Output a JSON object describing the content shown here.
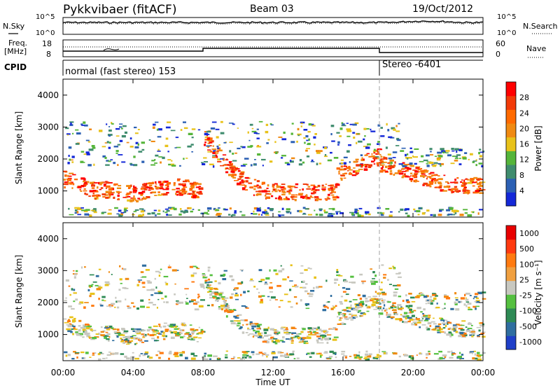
{
  "header": {
    "station": "Pykkvibaer (fitACF)",
    "beam": "Beam 03",
    "date": "19/Oct/2012"
  },
  "noise_panel": {
    "left_label": "N.Sky",
    "right_label": "N.Search",
    "ticks_left": [
      "10^5",
      "10^0"
    ],
    "ticks_right": [
      "10^5",
      "10^0"
    ]
  },
  "freq_panel": {
    "left_label_1": "Freq.",
    "left_label_2": "[MHz]",
    "ticks_left": [
      "18",
      "8"
    ],
    "right_label": "Nave",
    "ticks_right": [
      "60",
      "0"
    ]
  },
  "cpid": {
    "label": "CPID",
    "segments": [
      {
        "text": "normal (fast stereo) 153",
        "start": "00:00"
      },
      {
        "text": "Stereo -6401",
        "start": "18:00"
      }
    ]
  },
  "chart_data": [
    {
      "type": "heatmap",
      "title": "",
      "xlabel": "Time UT",
      "ylabel": "Slant Range [km]",
      "x_ticks": [
        "00:00",
        "04:00",
        "08:00",
        "12:00",
        "16:00",
        "20:00",
        "00:00"
      ],
      "y_ticks": [
        "1000",
        "2000",
        "3000",
        "4000"
      ],
      "ylim": [
        180,
        4500
      ],
      "colorbar": {
        "label": "Power [dB]",
        "ticks": [
          "4",
          "8",
          "12",
          "16",
          "20",
          "24",
          "28"
        ],
        "colors": [
          "#1428d8",
          "#2c60b4",
          "#3f8c6e",
          "#55b53a",
          "#e8c21a",
          "#f08a12",
          "#ff6a00",
          "#f23a08",
          "#ff0000"
        ]
      }
    },
    {
      "type": "heatmap",
      "title": "",
      "xlabel": "Time UT",
      "ylabel": "Slant Range [km]",
      "x_ticks": [
        "00:00",
        "04:00",
        "08:00",
        "12:00",
        "16:00",
        "20:00",
        "00:00"
      ],
      "y_ticks": [
        "1000",
        "2000",
        "3000",
        "4000"
      ],
      "ylim": [
        180,
        4500
      ],
      "colorbar": {
        "label": "Velocity [m s⁻¹]",
        "ticks": [
          "1000",
          "500",
          "100",
          "25",
          "-25",
          "-100",
          "-500",
          "-1000"
        ],
        "colors": [
          "#1f3fc8",
          "#2f6ea0",
          "#2e8a55",
          "#55c040",
          "#c8c8c0",
          "#f0a040",
          "#ff7a10",
          "#ff3a10",
          "#e80000"
        ]
      }
    }
  ],
  "x_axis_label": "Time UT"
}
